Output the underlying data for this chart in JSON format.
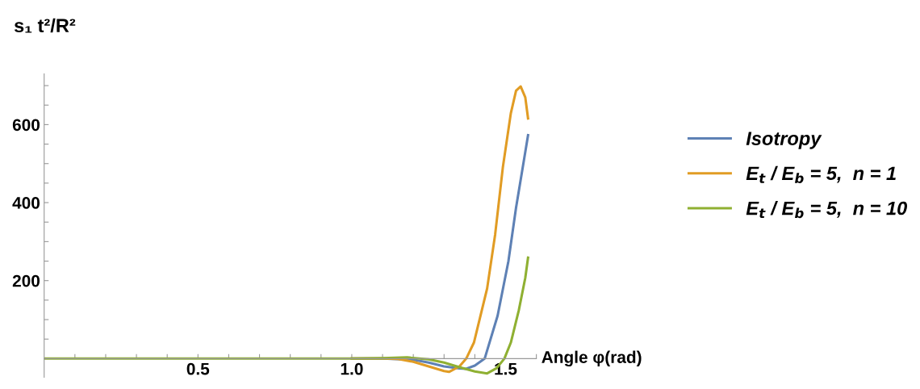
{
  "chart_data": {
    "type": "line",
    "ylabel": "s₁ t²/R²",
    "xlabel": "Angle φ(rad)",
    "xlim": [
      0,
      1.6
    ],
    "ylim": [
      -48,
      730
    ],
    "xticks": [
      {
        "value": 0.1,
        "label": null
      },
      {
        "value": 0.2,
        "label": null
      },
      {
        "value": 0.3,
        "label": null
      },
      {
        "value": 0.4,
        "label": null
      },
      0.5,
      {
        "value": 0.6,
        "label": null
      },
      {
        "value": 0.7,
        "label": null
      },
      {
        "value": 0.8,
        "label": null
      },
      {
        "value": 0.9,
        "label": null
      },
      {
        "value": 1.0,
        "label": "1.0"
      },
      {
        "value": 1.1,
        "label": null
      },
      {
        "value": 1.2,
        "label": null
      },
      {
        "value": 1.3,
        "label": null
      },
      {
        "value": 1.4,
        "label": null
      },
      1.5,
      {
        "value": 1.6,
        "label": null
      }
    ],
    "yticks": [
      {
        "value": 50,
        "label": null
      },
      {
        "value": 100,
        "label": null
      },
      {
        "value": 150,
        "label": null
      },
      200,
      {
        "value": 250,
        "label": null
      },
      {
        "value": 300,
        "label": null
      },
      {
        "value": 350,
        "label": null
      },
      400,
      {
        "value": 450,
        "label": null
      },
      {
        "value": 500,
        "label": null
      },
      {
        "value": 550,
        "label": null
      },
      600,
      {
        "value": 650,
        "label": null
      },
      {
        "value": 700,
        "label": null
      }
    ],
    "grid": false,
    "legend": "right",
    "line_style": "solid",
    "marker": "none",
    "series": [
      {
        "name": "Isotropy",
        "color": "#5e81b5",
        "x": [
          1.0,
          1.1,
          1.2,
          1.25,
          1.3,
          1.35,
          1.372,
          1.4,
          1.432,
          1.474,
          1.509,
          1.534,
          1.56,
          1.573
        ],
        "values": [
          0,
          0,
          -3,
          -10,
          -20,
          -25,
          -26,
          -18,
          0,
          110,
          249,
          387,
          511,
          573
        ]
      },
      {
        "name": "E$_{t}$ / E$_{b}$ = 5,  n = 1",
        "color": "#e19c24",
        "x": [
          1.0,
          1.1,
          1.15,
          1.2,
          1.25,
          1.3,
          1.316,
          1.35,
          1.372,
          1.397,
          1.44,
          1.466,
          1.491,
          1.517,
          1.534,
          1.549,
          1.564,
          1.573
        ],
        "values": [
          0,
          0,
          -1,
          -8,
          -20,
          -32,
          -34,
          -20,
          0,
          41,
          180,
          318,
          490,
          629,
          687,
          698,
          670,
          616
        ]
      },
      {
        "name": "E$_{t}$ / E$_{b}$ = 5,  n = 10",
        "color": "#8fb032",
        "x": [
          0,
          0.5,
          1.0,
          1.1,
          1.18,
          1.25,
          1.3,
          1.35,
          1.4,
          1.44,
          1.47,
          1.496,
          1.517,
          1.543,
          1.564,
          1.573
        ],
        "values": [
          0,
          0,
          0,
          1,
          3,
          -2,
          -10,
          -22,
          -33,
          -38,
          -25,
          0,
          41,
          124,
          207,
          259
        ]
      }
    ]
  }
}
